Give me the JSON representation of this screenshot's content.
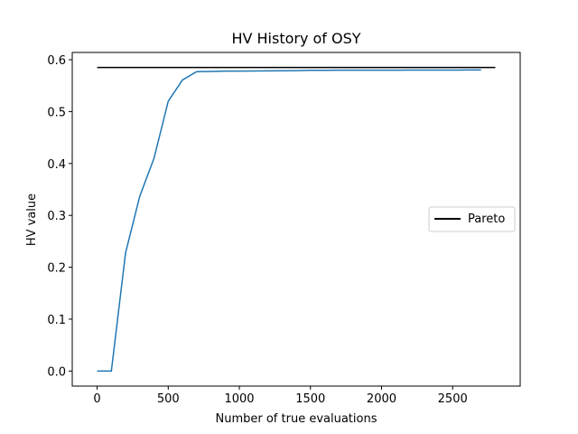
{
  "chart_data": {
    "type": "line",
    "title": "HV History of OSY",
    "xlabel": "Number of true evaluations",
    "ylabel": "HV value",
    "xlim": [
      -175,
      2975
    ],
    "ylim": [
      -0.029,
      0.614
    ],
    "xticks": [
      0,
      500,
      1000,
      1500,
      2000,
      2500
    ],
    "yticks": [
      0.0,
      0.1,
      0.2,
      0.3,
      0.4,
      0.5,
      0.6
    ],
    "ytick_labels": [
      "0.0",
      "0.1",
      "0.2",
      "0.3",
      "0.4",
      "0.5",
      "0.6"
    ],
    "grid": false,
    "legend_position": "center-right",
    "series": [
      {
        "name": "",
        "color": "#1f77b4",
        "x": [
          0,
          100,
          200,
          300,
          400,
          500,
          600,
          700,
          800,
          900,
          1000,
          1100,
          1200,
          1300,
          1400,
          1500,
          1600,
          1700,
          1800,
          1900,
          2000,
          2100,
          2200,
          2300,
          2400,
          2500,
          2600,
          2700
        ],
        "y": [
          0.0,
          0.0,
          0.228,
          0.337,
          0.41,
          0.52,
          0.561,
          0.577,
          0.5775,
          0.578,
          0.578,
          0.5783,
          0.5785,
          0.5788,
          0.579,
          0.5795,
          0.5796,
          0.5797,
          0.5798,
          0.5798,
          0.5799,
          0.5799,
          0.58,
          0.58,
          0.58,
          0.58,
          0.5802,
          0.5803
        ]
      },
      {
        "name": "Pareto",
        "color": "#000000",
        "x": [
          0,
          2800
        ],
        "y": [
          0.585,
          0.585
        ]
      }
    ],
    "legend": [
      "Pareto"
    ]
  }
}
